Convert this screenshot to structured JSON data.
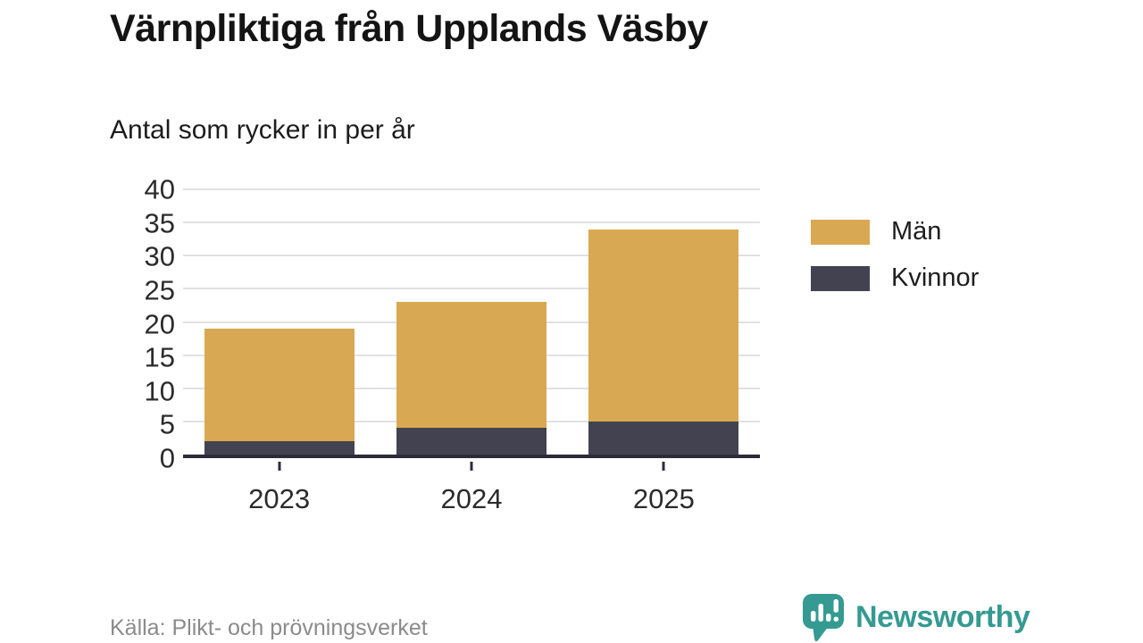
{
  "header": {
    "title": "Värnpliktiga från Upplands Väsby",
    "subtitle": "Antal som rycker in per år"
  },
  "chart_data": {
    "type": "bar",
    "stacked": true,
    "title": "Värnpliktiga från Upplands Väsby",
    "subtitle": "Antal som rycker in per år",
    "categories": [
      "2023",
      "2024",
      "2025"
    ],
    "series": [
      {
        "name": "Män",
        "color": "#d8a952",
        "values": [
          17,
          19,
          29
        ]
      },
      {
        "name": "Kvinnor",
        "color": "#434250",
        "values": [
          2,
          4,
          5
        ]
      }
    ],
    "stack_order_bottom_to_top": [
      "Kvinnor",
      "Män"
    ],
    "totals": [
      19,
      23,
      34
    ],
    "xlabel": "",
    "ylabel": "",
    "ylim": [
      0,
      40
    ],
    "yticks": [
      0,
      5,
      10,
      15,
      20,
      25,
      30,
      35,
      40
    ],
    "grid": true,
    "legend_position": "right"
  },
  "footer": {
    "source": "Källa: Plikt- och prövningsverket",
    "brand": "Newsworthy",
    "brand_color": "#359a91",
    "brand_icon": "bar-chart-speech-bubble-icon"
  }
}
